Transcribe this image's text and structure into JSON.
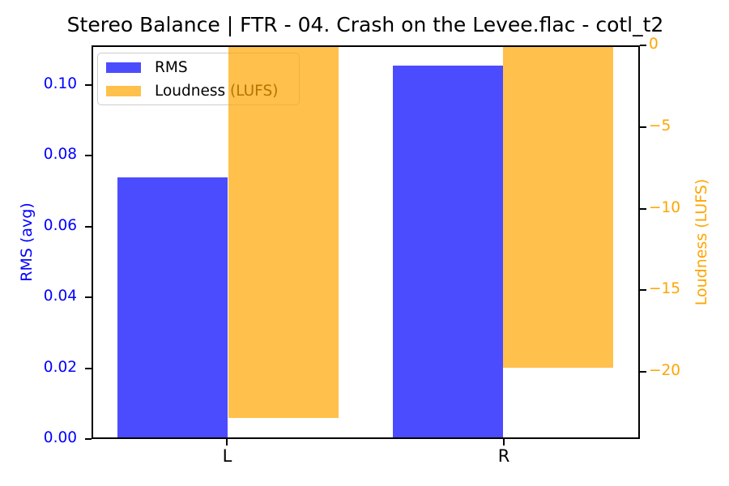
{
  "figure": {
    "title": "Stereo Balance | FTR - 04. Crash on the Levee.flac - cotl_t2"
  },
  "chart_data": {
    "type": "bar",
    "title": "Stereo Balance | FTR - 04. Crash on the Levee.flac - cotl_t2",
    "categories": [
      "L",
      "R"
    ],
    "series": [
      {
        "name": "RMS",
        "axis": "left",
        "values": [
          0.074,
          0.106
        ],
        "color": "rgba(0,0,255,0.7)"
      },
      {
        "name": "Loudness (LUFS)",
        "axis": "right",
        "values": [
          -22.9,
          -19.8
        ],
        "color": "rgba(255,165,0,0.7)"
      }
    ],
    "axes": {
      "left": {
        "label": "RMS (avg)",
        "color": "#0000ff",
        "tick_labels": [
          "0.00",
          "0.02",
          "0.04",
          "0.06",
          "0.08",
          "0.10"
        ],
        "tick_values": [
          0,
          0.02,
          0.04,
          0.06,
          0.08,
          0.1
        ],
        "ylim": [
          0,
          0.1112
        ]
      },
      "right": {
        "label": "Loudness (LUFS)",
        "color": "#ffa500",
        "tick_labels": [
          "0",
          "−5",
          "−10",
          "−15",
          "−20"
        ],
        "tick_values": [
          0,
          -5,
          -10,
          -15,
          -20
        ],
        "ylim": [
          -24.1,
          0
        ]
      },
      "x": {
        "tick_labels": [
          "L",
          "R"
        ]
      }
    },
    "legend": {
      "position": "upper-left",
      "entries": [
        {
          "label": "RMS",
          "color": "rgba(0,0,255,0.7)"
        },
        {
          "label": "Loudness (LUFS)",
          "color": "rgba(255,165,0,0.7)"
        }
      ]
    },
    "grid": false
  }
}
